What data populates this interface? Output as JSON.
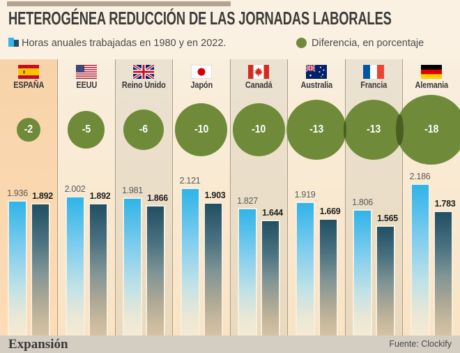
{
  "title": "HETEROGÉNEA REDUCCIÓN DE LAS JORNADAS LABORALES",
  "legend": {
    "bars_label": "Horas anuales trabajadas en 1980 y en 2022.",
    "diff_label": "Diferencia, en porcentaje"
  },
  "footer": {
    "brand": "Expansión",
    "source": "Fuente: Clockify"
  },
  "colors": {
    "accent_green": "#6f8b3a",
    "overlap_green": "#4b5e22",
    "bar_1980_top": "#2fb4e8",
    "bar_2022_top": "#214f63",
    "highlight_column_bg": "#f8d3a9",
    "top_bar": "#b2a392",
    "footer_bg": "#d3cdc2"
  },
  "chart_data": {
    "type": "bar",
    "title": "HETEROGÉNEA REDUCCIÓN DE LAS JORNADAS LABORALES",
    "categories": [
      "ESPAÑA",
      "EEUU",
      "Reino Unido",
      "Japón",
      "Canadá",
      "Australia",
      "Francia",
      "Alemania"
    ],
    "flags": [
      "es",
      "us",
      "uk",
      "jp",
      "ca",
      "au",
      "fr",
      "de"
    ],
    "series": [
      {
        "name": "Horas anuales trabajadas en 1980",
        "values": [
          1936,
          2002,
          1981,
          2121,
          1827,
          1919,
          1806,
          2186
        ]
      },
      {
        "name": "Horas anuales trabajadas en 2022",
        "values": [
          1892,
          1892,
          1866,
          1903,
          1644,
          1669,
          1565,
          1783
        ]
      }
    ],
    "difference_pct": [
      -2,
      -5,
      -6,
      -10,
      -10,
      -13,
      -13,
      -18
    ],
    "value_labels_1980": [
      "1.936",
      "2.002",
      "1.981",
      "2.121",
      "1.827",
      "1.919",
      "1.806",
      "2.186"
    ],
    "value_labels_2022": [
      "1.892",
      "1.892",
      "1.866",
      "1.903",
      "1.644",
      "1.669",
      "1.565",
      "1.783"
    ],
    "pct_labels": [
      "-2",
      "-5",
      "-6",
      "-10",
      "-10",
      "-13",
      "-13",
      "-18"
    ],
    "ylim": [
      0,
      2200
    ],
    "legend_position": "top"
  }
}
